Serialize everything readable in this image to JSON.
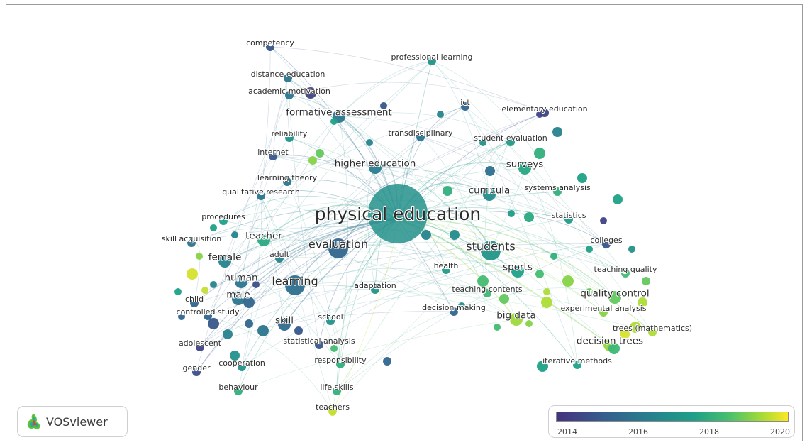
{
  "app": {
    "name": "VOSviewer"
  },
  "legend": {
    "ticks": [
      "2014",
      "2016",
      "2018",
      "2020"
    ],
    "colors": [
      "#46327e",
      "#365c8d",
      "#277f8e",
      "#1fa187",
      "#4ac16d",
      "#a0da39",
      "#fde725"
    ]
  },
  "keywords": [
    {
      "text": "competency",
      "year": 2014.5,
      "size": "s"
    },
    {
      "text": "professional learning",
      "year": 2016.5,
      "size": "s"
    },
    {
      "text": "distance education",
      "year": 2015.5,
      "size": "s"
    },
    {
      "text": "academic motivation",
      "year": 2015.5,
      "size": "s"
    },
    {
      "text": "formative assessment",
      "year": 2015.5,
      "size": "m"
    },
    {
      "text": "ict",
      "year": 2015,
      "size": "s"
    },
    {
      "text": "elementary education",
      "year": 2014,
      "size": "s"
    },
    {
      "text": "reliability",
      "year": 2016.5,
      "size": "s"
    },
    {
      "text": "transdisciplinary",
      "year": 2015.5,
      "size": "s"
    },
    {
      "text": "student evaluation",
      "year": 2016.8,
      "size": "s"
    },
    {
      "text": "internet",
      "year": 2014.5,
      "size": "s"
    },
    {
      "text": "higher education",
      "year": 2015.8,
      "size": "m"
    },
    {
      "text": "surveys",
      "year": 2017.2,
      "size": "m"
    },
    {
      "text": "learning theory",
      "year": 2015.5,
      "size": "s"
    },
    {
      "text": "curricula",
      "year": 2016.3,
      "size": "m"
    },
    {
      "text": "systems analysis",
      "year": 2017.5,
      "size": "s"
    },
    {
      "text": "qualitative research",
      "year": 2015.5,
      "size": "s"
    },
    {
      "text": "physical education",
      "year": 2016.4,
      "size": "xl"
    },
    {
      "text": "procedures",
      "year": 2017,
      "size": "s"
    },
    {
      "text": "statistics",
      "year": 2016.8,
      "size": "s"
    },
    {
      "text": "teacher",
      "year": 2017.3,
      "size": "m"
    },
    {
      "text": "skill acquisition",
      "year": 2015.5,
      "size": "s"
    },
    {
      "text": "evaluation",
      "year": 2015,
      "size": "l"
    },
    {
      "text": "colleges",
      "year": 2014.5,
      "size": "s"
    },
    {
      "text": "students",
      "year": 2016.6,
      "size": "l"
    },
    {
      "text": "female",
      "year": 2016,
      "size": "m"
    },
    {
      "text": "adult",
      "year": 2016,
      "size": "s"
    },
    {
      "text": "health",
      "year": 2016.8,
      "size": "s"
    },
    {
      "text": "sports",
      "year": 2017,
      "size": "m"
    },
    {
      "text": "teaching quality",
      "year": 2018,
      "size": "s"
    },
    {
      "text": "human",
      "year": 2015.5,
      "size": "m"
    },
    {
      "text": "learning",
      "year": 2015.3,
      "size": "l"
    },
    {
      "text": "adaptation",
      "year": 2016.5,
      "size": "s"
    },
    {
      "text": "teaching contents",
      "year": 2017.8,
      "size": "s"
    },
    {
      "text": "quality control",
      "year": 2018.5,
      "size": "m"
    },
    {
      "text": "child",
      "year": 2015,
      "size": "s"
    },
    {
      "text": "male",
      "year": 2015.5,
      "size": "m"
    },
    {
      "text": "controlled study",
      "year": 2015,
      "size": "s"
    },
    {
      "text": "decision making",
      "year": 2015,
      "size": "s"
    },
    {
      "text": "big data",
      "year": 2019.3,
      "size": "m"
    },
    {
      "text": "experimental analysis",
      "year": 2019,
      "size": "s"
    },
    {
      "text": "skill",
      "year": 2015.2,
      "size": "m"
    },
    {
      "text": "school",
      "year": 2016.5,
      "size": "s"
    },
    {
      "text": "trees (mathematics)",
      "year": 2019.5,
      "size": "s"
    },
    {
      "text": "adolescent",
      "year": 2014,
      "size": "s"
    },
    {
      "text": "statistical analysis",
      "year": 2014.5,
      "size": "s"
    },
    {
      "text": "decision trees",
      "year": 2019.2,
      "size": "m"
    },
    {
      "text": "cooperation",
      "year": 2016.5,
      "size": "s"
    },
    {
      "text": "responsibility",
      "year": 2017.5,
      "size": "s"
    },
    {
      "text": "iterative methods",
      "year": 2017,
      "size": "s"
    },
    {
      "text": "gender",
      "year": 2014.3,
      "size": "s"
    },
    {
      "text": "behaviour",
      "year": 2017.5,
      "size": "s"
    },
    {
      "text": "life skills",
      "year": 2017.5,
      "size": "s"
    },
    {
      "text": "teachers",
      "year": 2019.8,
      "size": "s"
    }
  ]
}
